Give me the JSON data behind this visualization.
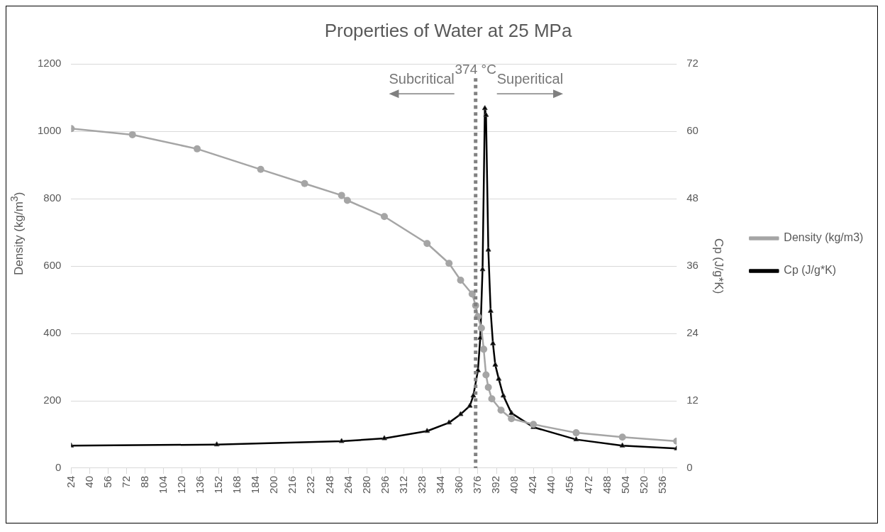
{
  "chart_data": {
    "type": "line",
    "title": "Properties of Water at 25 MPa",
    "xlabel": null,
    "ylabel": "Density (kg/m$^{3}$)",
    "y2label": "Cp (J/g*K)",
    "annotations": [
      "Subcritical",
      "Superitical"
    ],
    "xlim": [
      24,
      548
    ],
    "xticks": [
      24,
      40,
      56,
      72,
      88,
      104,
      120,
      136,
      152,
      168,
      184,
      200,
      216,
      232,
      248,
      264,
      280,
      296,
      312,
      328,
      344,
      360,
      376,
      392,
      408,
      424,
      440,
      456,
      472,
      488,
      504,
      520,
      536
    ],
    "ylim": [
      0,
      1200
    ],
    "yticks": [
      0,
      200,
      400,
      600,
      800,
      1000,
      1200
    ],
    "y2lim": [
      0,
      72
    ],
    "y2ticks": [
      0,
      12,
      24,
      36,
      48,
      60,
      72
    ],
    "grid": "y",
    "legend": "right",
    "ref_lines": [
      {
        "axis": "x",
        "value": 374,
        "label": "374 °C",
        "color": "#808080",
        "line_style": "dotted"
      }
    ],
    "series": [
      {
        "name": "Density (kg/m3)",
        "color": "#a5a5a5",
        "marker": "circle",
        "x": [
          24,
          77,
          133,
          188,
          226,
          258,
          263,
          295,
          332,
          351,
          361,
          371,
          374,
          376,
          379,
          381,
          383,
          385,
          388,
          396,
          405,
          424,
          461,
          501,
          548
        ],
        "values": [
          1008,
          990,
          948,
          887,
          845,
          810,
          795,
          747,
          667,
          608,
          558,
          517,
          483,
          450,
          416,
          353,
          277,
          240,
          206,
          172,
          147,
          130,
          105,
          92,
          80
        ]
      },
      {
        "name": "Cp (J/g*K)",
        "color": "#000000",
        "marker": "triangle",
        "axis": "y2",
        "x": [
          24,
          150,
          258,
          295,
          332,
          351,
          361,
          369,
          372,
          376,
          378,
          380,
          382,
          383,
          385,
          387,
          389,
          391,
          394,
          398,
          405,
          424,
          461,
          501,
          548
        ],
        "values": [
          4.0,
          4.2,
          4.8,
          5.3,
          6.6,
          8.1,
          9.6,
          11.1,
          12.9,
          17.4,
          23.2,
          35.4,
          64.1,
          62.9,
          38.9,
          28,
          22.2,
          18.4,
          15.9,
          12.9,
          9.8,
          7.3,
          5.1,
          4.0,
          3.5
        ]
      }
    ]
  }
}
